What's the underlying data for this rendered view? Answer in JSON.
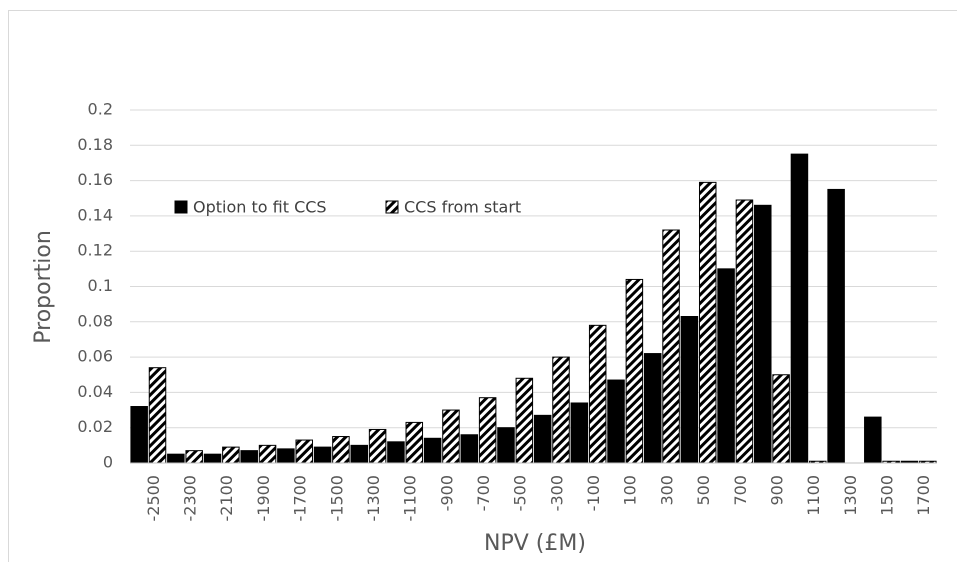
{
  "chart_data": {
    "type": "bar",
    "x_label": "NPV (£M)",
    "y_label": "Proportion",
    "categories": [
      "-2500",
      "-2300",
      "-2100",
      "-1900",
      "-1700",
      "-1500",
      "-1300",
      "-1100",
      "-900",
      "-700",
      "-500",
      "-300",
      "-100",
      "100",
      "300",
      "500",
      "700",
      "900",
      "1100",
      "1300",
      "1500",
      "1700"
    ],
    "series": [
      {
        "name": "Option to fit CCS",
        "color": "#000000",
        "fill": "solid",
        "values": [
          0.032,
          0.005,
          0.005,
          0.007,
          0.008,
          0.009,
          0.01,
          0.012,
          0.014,
          0.016,
          0.02,
          0.027,
          0.034,
          0.047,
          0.062,
          0.083,
          0.11,
          0.146,
          0.175,
          0.155,
          0.026,
          0.001
        ]
      },
      {
        "name": "CCS from start",
        "color": "#000000",
        "fill": "hatch",
        "values": [
          0.054,
          0.007,
          0.009,
          0.01,
          0.013,
          0.015,
          0.019,
          0.023,
          0.03,
          0.037,
          0.048,
          0.06,
          0.078,
          0.104,
          0.132,
          0.159,
          0.149,
          0.05,
          0.001,
          0,
          0.001,
          0.001
        ]
      }
    ],
    "ylim": [
      0,
      0.2
    ],
    "yticks": [
      0,
      0.02,
      0.04,
      0.06,
      0.08,
      0.1,
      0.12,
      0.14,
      0.16,
      0.18,
      0.2
    ],
    "grid": true,
    "legend": "top-left"
  }
}
